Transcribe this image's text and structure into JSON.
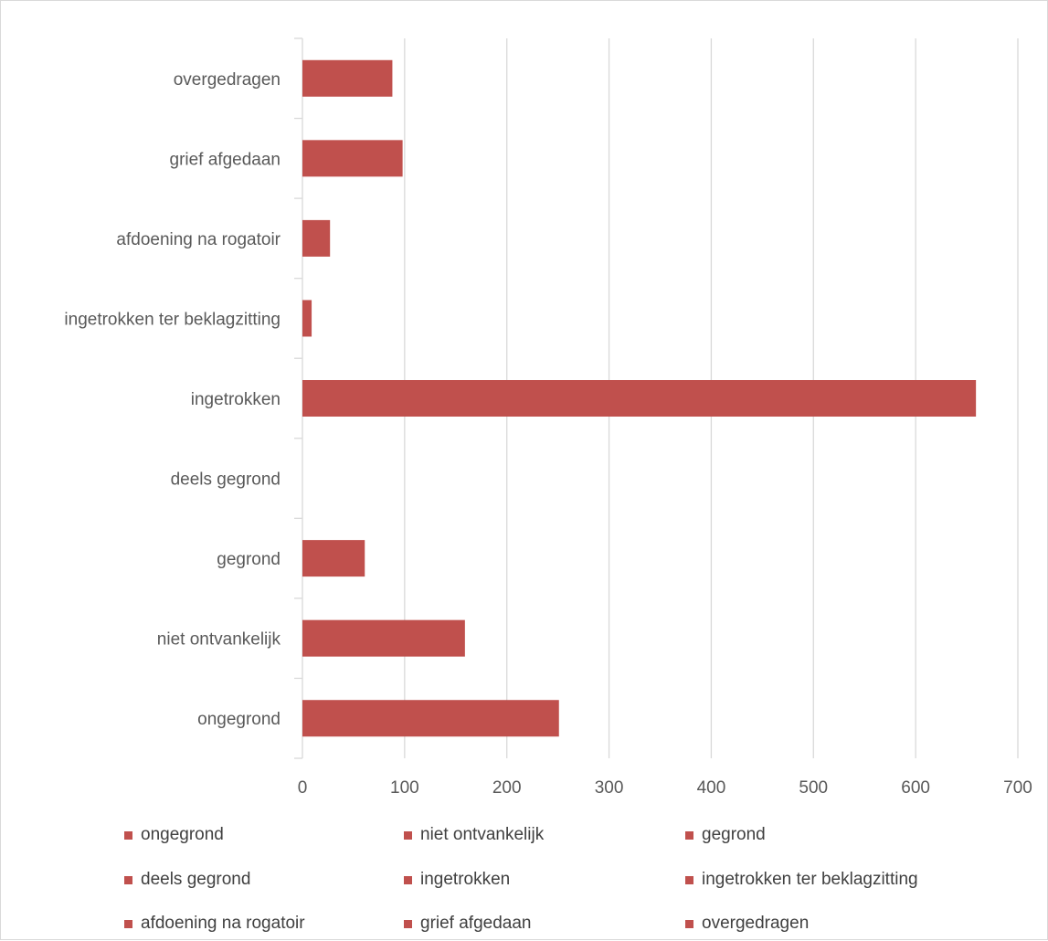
{
  "chart_data": {
    "type": "bar",
    "orientation": "horizontal",
    "categories": [
      "ongegrond",
      "niet ontvankelijk",
      "gegrond",
      "deels gegrond",
      "ingetrokken",
      "ingetrokken ter beklagzitting",
      "afdoening na rogatoir",
      "grief afgedaan",
      "overgedragen"
    ],
    "values": [
      251,
      159,
      61,
      0,
      659,
      9,
      27,
      98,
      88
    ],
    "xlim": [
      0,
      700
    ],
    "xticks": [
      "0",
      "100",
      "200",
      "300",
      "400",
      "500",
      "600",
      "700"
    ],
    "grid": true,
    "bar_color": "#c0504d",
    "legend_position": "bottom",
    "legend": [
      "ongegrond",
      "niet ontvankelijk",
      "gegrond",
      "deels gegrond",
      "ingetrokken",
      "ingetrokken ter beklagzitting",
      "afdoening na rogatoir",
      "grief afgedaan",
      "overgedragen"
    ]
  }
}
